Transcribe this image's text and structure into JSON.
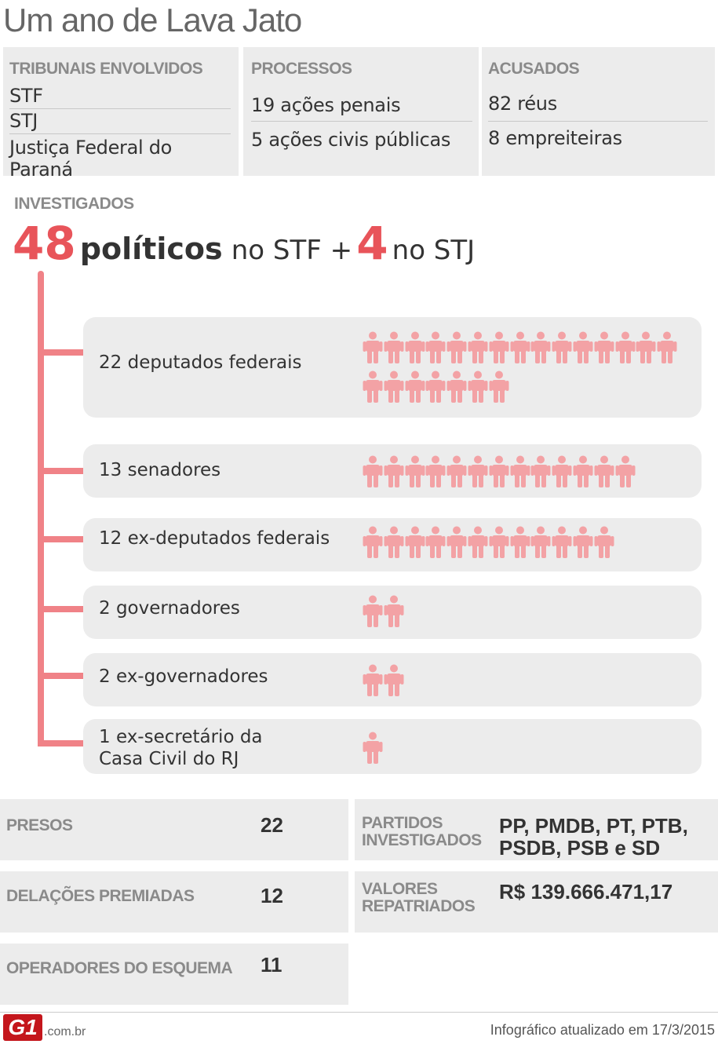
{
  "title": "Um ano de Lava Jato",
  "top_boxes": {
    "tribunais": {
      "header": "TRIBUNAIS ENVOLVIDOS",
      "items": [
        "STF",
        "STJ",
        "Justiça Federal do Paraná"
      ]
    },
    "processos": {
      "header": "PROCESSOS",
      "items": [
        {
          "num": "19",
          "text": "ações penais"
        },
        {
          "num": "5",
          "text": "ações civis públicas"
        }
      ]
    },
    "acusados": {
      "header": "ACUSADOS",
      "items": [
        {
          "num": "82",
          "text": "réus"
        },
        {
          "num": "8",
          "text": "empreiteiras"
        }
      ]
    }
  },
  "investigados": {
    "header": "INVESTIGADOS",
    "num_stf": "48",
    "label_politicos": "políticos",
    "label_no_stf": "no STF +",
    "num_stj": "4",
    "label_no_stj": "no STJ"
  },
  "groups": [
    {
      "num": "22",
      "text": "deputados federais",
      "count": 22
    },
    {
      "num": "13",
      "text": "senadores",
      "count": 13
    },
    {
      "num": "12",
      "text": "ex-deputados federais",
      "count": 12
    },
    {
      "num": "2",
      "text": "governadores",
      "count": 2
    },
    {
      "num": "2",
      "text": "ex-governadores",
      "count": 2
    },
    {
      "num": "1",
      "text": "ex-secretário da",
      "text2": "Casa Civil do RJ",
      "count": 1
    }
  ],
  "stats": {
    "presos": {
      "label": "PRESOS",
      "value": "22"
    },
    "delacoes": {
      "label": "DELAÇÕES PREMIADAS",
      "value": "12"
    },
    "operadores": {
      "label": "OPERADORES DO ESQUEMA",
      "value": "11"
    },
    "partidos": {
      "label1": "PARTIDOS",
      "label2": "INVESTIGADOS",
      "value1": "PP, PMDB, PT, PTB,",
      "value2": "PSDB, PSB e SD"
    },
    "valores": {
      "label1": "VALORES",
      "label2": "REPATRIADOS",
      "value": "R$ 139.666.471,17"
    }
  },
  "footer": {
    "logo": "G1",
    "logo_suffix": ".com.br",
    "updated": "Infográfico atualizado em 17/3/2015"
  },
  "colors": {
    "accent": "#e8545a",
    "line": "#f08287",
    "icon": "#f3a2a5",
    "box": "#ececec"
  },
  "icon_name": "person-icon"
}
